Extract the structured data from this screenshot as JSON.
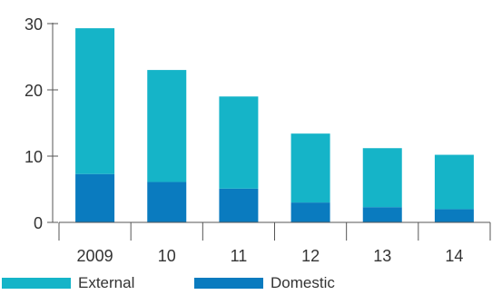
{
  "chart_data": {
    "type": "bar",
    "stacked": true,
    "categories": [
      "2009",
      "10",
      "11",
      "12",
      "13",
      "14"
    ],
    "series": [
      {
        "name": "Domestic",
        "values": [
          7.3,
          6.1,
          5.1,
          3.0,
          2.3,
          2.0
        ],
        "color": "#0a7bbf"
      },
      {
        "name": "External",
        "values": [
          22.0,
          16.9,
          13.9,
          10.4,
          8.9,
          8.2
        ],
        "color": "#15b4c8"
      }
    ],
    "yticks": [
      "0",
      "10",
      "20",
      "30"
    ],
    "ylim": [
      0,
      30
    ],
    "grid": false,
    "legend_position": "bottom-left"
  },
  "legend": {
    "external": "External",
    "domestic": "Domestic"
  }
}
